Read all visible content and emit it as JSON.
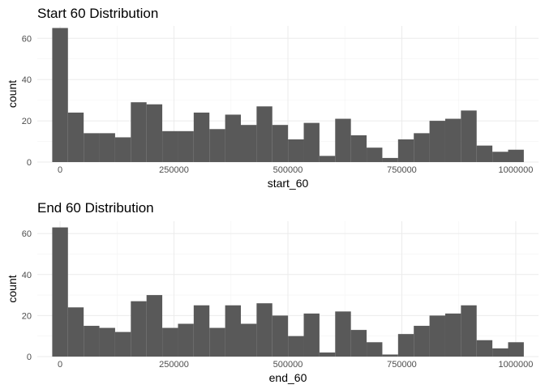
{
  "chart_data": [
    {
      "type": "bar",
      "title": "Start 60 Distribution",
      "xlabel": "start_60",
      "ylabel": "count",
      "x_ticks": [
        "0",
        "250000",
        "500000",
        "750000",
        "1000000"
      ],
      "y_ticks": [
        "0",
        "20",
        "40",
        "60"
      ],
      "ylim": [
        0,
        66
      ],
      "xlim": [
        -50000,
        1050000
      ],
      "bin_width": 34500,
      "bin_start": -17250,
      "values": [
        65,
        24,
        14,
        14,
        12,
        29,
        28,
        15,
        15,
        24,
        16,
        23,
        18,
        27,
        18,
        11,
        19,
        3,
        21,
        13,
        7,
        2,
        11,
        14,
        20,
        21,
        25,
        8,
        5,
        6
      ],
      "grid": true,
      "legend": "none",
      "bar_color": "#595959"
    },
    {
      "type": "bar",
      "title": "End 60 Distribution",
      "xlabel": "end_60",
      "ylabel": "count",
      "x_ticks": [
        "0",
        "250000",
        "500000",
        "750000",
        "1000000"
      ],
      "y_ticks": [
        "0",
        "20",
        "40",
        "60"
      ],
      "ylim": [
        0,
        66
      ],
      "xlim": [
        -50000,
        1050000
      ],
      "bin_width": 34500,
      "bin_start": -17250,
      "values": [
        63,
        24,
        15,
        14,
        12,
        27,
        30,
        14,
        16,
        25,
        14,
        25,
        16,
        26,
        20,
        10,
        21,
        2,
        22,
        13,
        7,
        1,
        11,
        15,
        20,
        21,
        25,
        8,
        4,
        7
      ],
      "grid": true,
      "legend": "none",
      "bar_color": "#595959"
    }
  ]
}
